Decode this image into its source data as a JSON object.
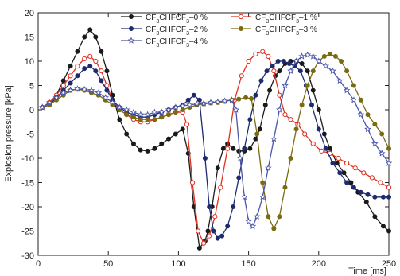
{
  "chart_data": {
    "type": "line",
    "xlabel": "Time [ms]",
    "ylabel": "Explosion pressure [kPa]",
    "xlim": [
      0,
      250
    ],
    "ylim": [
      -30,
      20
    ],
    "xticks": [
      0,
      50,
      100,
      150,
      200,
      250
    ],
    "yticks": [
      -30,
      -25,
      -20,
      -15,
      -10,
      -5,
      0,
      5,
      10,
      15,
      20
    ],
    "grid": false,
    "legend_position": "top",
    "series": [
      {
        "name": "CF3CHFCF3–0 %",
        "label_parts": [
          "CF",
          "3",
          "CHFCF",
          "3",
          "–0 %"
        ],
        "color": "#1a1a1a",
        "marker": "circle-filled",
        "x": [
          3,
          8,
          13,
          18,
          23,
          28,
          33,
          37,
          41,
          45,
          49,
          53,
          58,
          63,
          68,
          73,
          78,
          83,
          88,
          93,
          98,
          103,
          107,
          111,
          115,
          119,
          121,
          124,
          128,
          132,
          135,
          139,
          143,
          147,
          151,
          155,
          158,
          162,
          165,
          169,
          172,
          176,
          180,
          184,
          188,
          192,
          196,
          200,
          204,
          208,
          213,
          218,
          223,
          228,
          234,
          240,
          246,
          250
        ],
        "y": [
          0.5,
          1,
          3,
          6,
          9,
          12,
          15,
          16.5,
          15,
          12,
          8,
          3,
          -2,
          -5,
          -7,
          -8.3,
          -8.5,
          -8,
          -7,
          -6,
          -5,
          -4,
          -9,
          -20,
          -28.5,
          -27,
          -25,
          -20,
          -12,
          -8,
          -7,
          -8,
          -8.5,
          -8.5,
          -8,
          -6,
          -4,
          1,
          4,
          7,
          8,
          9.5,
          10,
          10,
          9.5,
          8,
          4,
          0,
          -5,
          -8,
          -11,
          -13,
          -15,
          -17,
          -19,
          -22,
          -24,
          -25
        ]
      },
      {
        "name": "CF3CHFCF3–1 %",
        "label_parts": [
          "CF",
          "3",
          "CHFCF",
          "3",
          "–1 %"
        ],
        "color": "#e03020",
        "marker": "circle-open",
        "x": [
          3,
          8,
          13,
          18,
          23,
          28,
          33,
          37,
          41,
          45,
          49,
          53,
          58,
          63,
          68,
          73,
          78,
          83,
          88,
          93,
          98,
          103,
          106,
          110,
          114,
          118,
          122,
          126,
          130,
          135,
          140,
          145,
          150,
          155,
          160,
          164,
          168,
          172,
          176,
          180,
          185,
          190,
          196,
          202,
          208,
          214,
          220,
          226,
          232,
          238,
          244,
          250
        ],
        "y": [
          0.5,
          1.5,
          3,
          5,
          7,
          9,
          10.5,
          11,
          10,
          8,
          5,
          2,
          0,
          -1,
          -2,
          -2.5,
          -2.5,
          -2,
          -1.5,
          -1,
          -0.5,
          -0.5,
          -3,
          -15,
          -25,
          -27.5,
          -26,
          -22,
          -16,
          -8,
          2,
          7,
          10,
          11.5,
          12,
          11,
          8,
          3,
          -1,
          -2,
          -3,
          -5,
          -7,
          -8.5,
          -9,
          -10,
          -11,
          -12,
          -13,
          -14,
          -15,
          -16
        ]
      },
      {
        "name": "CF3CHFCF3–2 %",
        "label_parts": [
          "CF",
          "3",
          "CHFCF",
          "3",
          "–2 %"
        ],
        "color": "#1e2a6e",
        "marker": "circle-filled",
        "x": [
          3,
          8,
          13,
          18,
          23,
          28,
          33,
          37,
          41,
          45,
          49,
          53,
          58,
          63,
          68,
          73,
          78,
          83,
          88,
          93,
          98,
          103,
          107,
          111,
          115,
          119,
          122,
          125,
          128,
          131,
          135,
          139,
          143,
          147,
          151,
          155,
          159,
          163,
          167,
          171,
          175,
          179,
          183,
          187,
          191,
          195,
          200,
          205,
          210,
          215,
          220,
          225,
          230,
          235,
          240,
          246,
          250
        ],
        "y": [
          0.5,
          1,
          2.5,
          4,
          5.5,
          7,
          8.5,
          9,
          8,
          6,
          4,
          2,
          0.5,
          -0.5,
          -1,
          -1.5,
          -1.5,
          -1,
          -0.5,
          0,
          0.5,
          1,
          2,
          3,
          2,
          -10,
          -20,
          -25,
          -26.5,
          -26,
          -24,
          -20,
          -14,
          -8,
          -2,
          3,
          6,
          8,
          9,
          10,
          10,
          9.5,
          9,
          8,
          5,
          1,
          -4,
          -8,
          -11,
          -13,
          -15,
          -16,
          -17,
          -17.5,
          -18,
          -18,
          -18
        ]
      },
      {
        "name": "CF3CHFCF3–3 %",
        "label_parts": [
          "CF",
          "3",
          "CHFCF",
          "3",
          "–3 %"
        ],
        "color": "#7a6a10",
        "marker": "circle-filled",
        "x": [
          3,
          8,
          13,
          18,
          23,
          28,
          33,
          38,
          43,
          48,
          53,
          58,
          63,
          68,
          73,
          78,
          83,
          88,
          93,
          98,
          103,
          108,
          113,
          118,
          123,
          128,
          133,
          138,
          143,
          148,
          152,
          156,
          160,
          164,
          168,
          172,
          176,
          180,
          184,
          188,
          192,
          196,
          200,
          204,
          208,
          212,
          216,
          220,
          225,
          230,
          235,
          240,
          245,
          250
        ],
        "y": [
          0.5,
          1,
          2,
          3,
          4,
          4.2,
          4,
          3.5,
          3,
          2,
          1,
          0,
          -1,
          -1.5,
          -2,
          -2,
          -2,
          -1.5,
          -1,
          -0.5,
          0,
          0.5,
          1,
          1.2,
          1.4,
          1.5,
          1.7,
          2,
          2.2,
          2.5,
          2.3,
          -5,
          -15,
          -22,
          -24.5,
          -22,
          -16,
          -10,
          -4,
          1,
          5,
          8,
          10,
          11,
          11.5,
          11,
          10,
          8,
          5,
          2,
          -1,
          -3,
          -5,
          -8
        ]
      },
      {
        "name": "CF3CHFCF3–4 %",
        "label_parts": [
          "CF",
          "3",
          "CHFCF",
          "3",
          "–4 %"
        ],
        "color": "#4a55a8",
        "marker": "star",
        "x": [
          3,
          8,
          13,
          18,
          23,
          28,
          33,
          38,
          43,
          48,
          53,
          58,
          63,
          68,
          73,
          78,
          83,
          88,
          93,
          98,
          103,
          108,
          113,
          118,
          123,
          128,
          133,
          138,
          141,
          144,
          147,
          150,
          153,
          156,
          160,
          164,
          168,
          172,
          176,
          180,
          184,
          188,
          192,
          196,
          200,
          205,
          210,
          215,
          220,
          225,
          230,
          235,
          240,
          245,
          250
        ],
        "y": [
          0.5,
          1.5,
          2.5,
          3.5,
          4,
          4.3,
          4.2,
          4,
          3.5,
          2.5,
          1.5,
          0.5,
          0,
          -0.5,
          -1,
          -1,
          -0.5,
          -0.5,
          0,
          0.5,
          0.8,
          1,
          1.2,
          1.3,
          1.5,
          1.6,
          1.8,
          2,
          0,
          -10,
          -18,
          -23,
          -24,
          -22,
          -18,
          -12,
          -6,
          0,
          5,
          8,
          10,
          11,
          11.3,
          11,
          10,
          9,
          8,
          6,
          4,
          2,
          -1,
          -4,
          -7,
          -9,
          -11
        ]
      }
    ]
  }
}
